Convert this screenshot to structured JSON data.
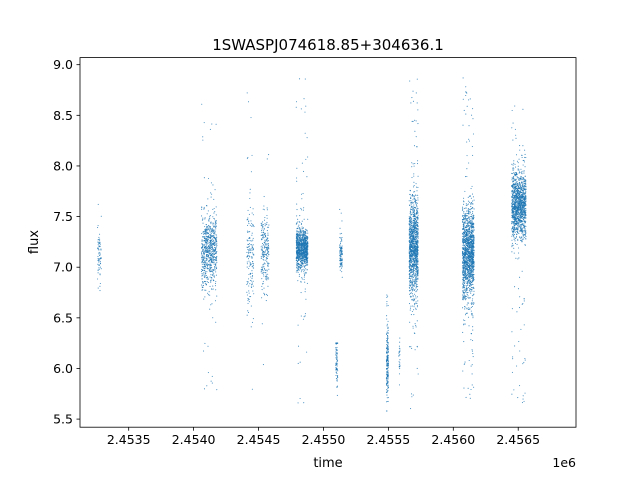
{
  "chart_data": {
    "type": "scatter",
    "title": "1SWASPJ074618.85+304636.1",
    "xlabel": "time",
    "ylabel": "flux",
    "x_offset_label": "1e6",
    "xlim": [
      2453125,
      2456945
    ],
    "ylim": [
      5.42,
      9.07
    ],
    "x_ticks": [
      2453500,
      2454000,
      2454500,
      2455000,
      2455500,
      2456000,
      2456500
    ],
    "x_tick_labels": [
      "2.4535",
      "2.4540",
      "2.4545",
      "2.4550",
      "2.4555",
      "2.4560",
      "2.4565"
    ],
    "y_ticks": [
      5.5,
      6.0,
      6.5,
      7.0,
      7.5,
      8.0,
      8.5,
      9.0
    ],
    "y_tick_labels": [
      "5.5",
      "6.0",
      "6.5",
      "7.0",
      "7.5",
      "8.0",
      "8.5",
      "9.0"
    ],
    "grid": false,
    "marker_color": "#1f77b4",
    "clusters": [
      {
        "x_start": 2453260,
        "x_end": 2453290,
        "y_center": 7.12,
        "y_spread": 0.28,
        "y_min": 6.45,
        "y_max": 7.8,
        "count": 70
      },
      {
        "x_start": 2454060,
        "x_end": 2454180,
        "y_center": 7.15,
        "y_spread": 0.3,
        "y_min": 5.6,
        "y_max": 8.7,
        "count": 700
      },
      {
        "x_start": 2454410,
        "x_end": 2454465,
        "y_center": 7.12,
        "y_spread": 0.45,
        "y_min": 5.75,
        "y_max": 8.85,
        "count": 160
      },
      {
        "x_start": 2454520,
        "x_end": 2454580,
        "y_center": 7.15,
        "y_spread": 0.35,
        "y_min": 5.6,
        "y_max": 8.85,
        "count": 220
      },
      {
        "x_start": 2454790,
        "x_end": 2454880,
        "y_center": 7.18,
        "y_spread": 0.17,
        "y_min": 5.6,
        "y_max": 8.9,
        "count": 1000
      },
      {
        "x_start": 2455095,
        "x_end": 2455110,
        "y_center": 6.1,
        "y_spread": 0.3,
        "y_min": 5.62,
        "y_max": 6.25,
        "count": 90
      },
      {
        "x_start": 2455125,
        "x_end": 2455145,
        "y_center": 7.15,
        "y_spread": 0.15,
        "y_min": 6.7,
        "y_max": 7.6,
        "count": 100
      },
      {
        "x_start": 2455485,
        "x_end": 2455500,
        "y_center": 6.05,
        "y_spread": 0.3,
        "y_min": 5.58,
        "y_max": 6.75,
        "count": 200
      },
      {
        "x_start": 2455580,
        "x_end": 2455590,
        "y_center": 6.1,
        "y_spread": 0.18,
        "y_min": 5.8,
        "y_max": 6.3,
        "count": 25
      },
      {
        "x_start": 2455660,
        "x_end": 2455730,
        "y_center": 7.2,
        "y_spread": 0.4,
        "y_min": 5.6,
        "y_max": 8.9,
        "count": 1200
      },
      {
        "x_start": 2456070,
        "x_end": 2456160,
        "y_center": 7.15,
        "y_spread": 0.38,
        "y_min": 5.7,
        "y_max": 8.9,
        "count": 1500
      },
      {
        "x_start": 2456450,
        "x_end": 2456560,
        "y_center": 7.62,
        "y_spread": 0.28,
        "y_min": 5.65,
        "y_max": 8.65,
        "count": 1300
      }
    ]
  }
}
